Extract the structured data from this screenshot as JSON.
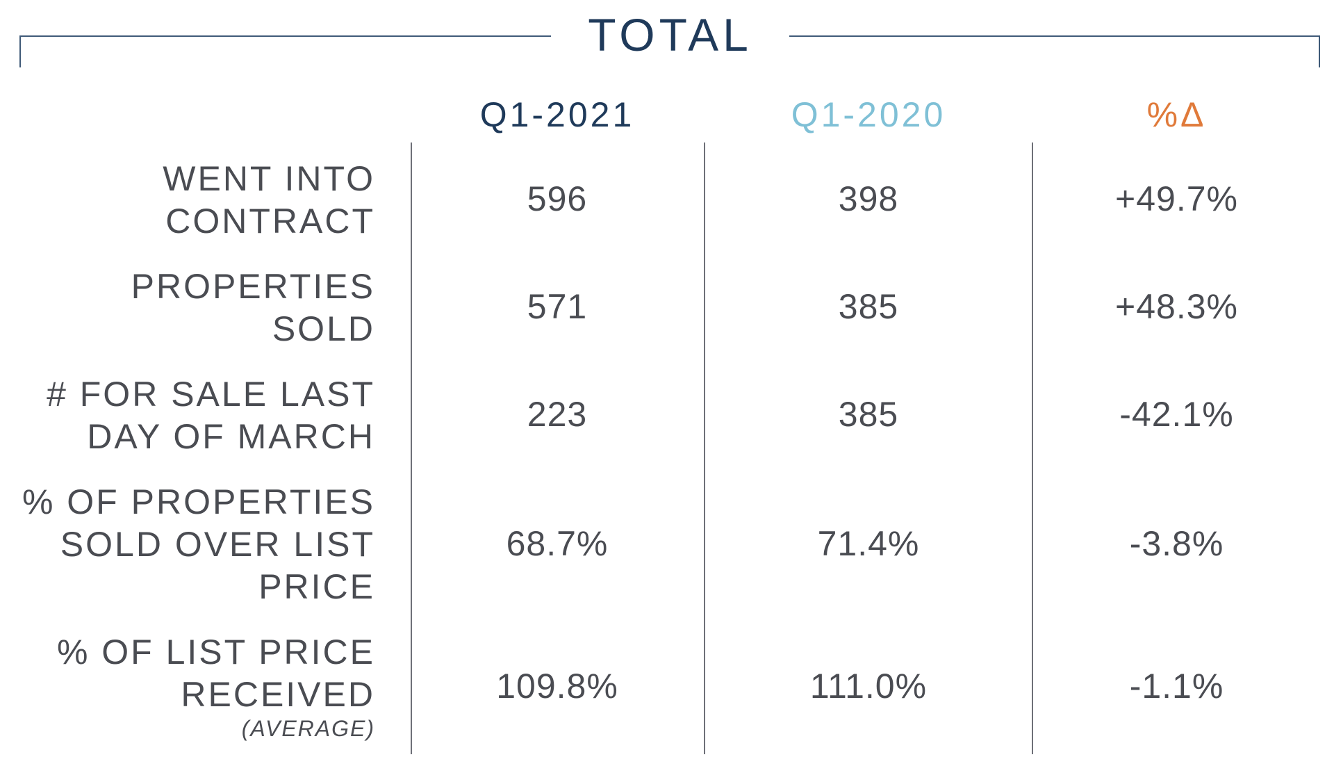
{
  "title": "TOTAL",
  "columns": [
    "Q1-2021",
    "Q1-2020",
    "%Δ"
  ],
  "column_colors": [
    "#1f3a5a",
    "#7fc0d6",
    "#e07a3a"
  ],
  "rows": [
    {
      "label_lines": [
        "WENT INTO",
        "CONTRACT"
      ],
      "sub": "",
      "values": [
        "596",
        "398",
        "+49.7%"
      ]
    },
    {
      "label_lines": [
        "PROPERTIES",
        "SOLD"
      ],
      "sub": "",
      "values": [
        "571",
        "385",
        "+48.3%"
      ]
    },
    {
      "label_lines": [
        "# FOR SALE LAST",
        "DAY OF MARCH"
      ],
      "sub": "",
      "values": [
        "223",
        "385",
        "-42.1%"
      ]
    },
    {
      "label_lines": [
        "% OF PROPERTIES",
        "SOLD OVER LIST",
        "PRICE"
      ],
      "sub": "",
      "values": [
        "68.7%",
        "71.4%",
        "-3.8%"
      ]
    },
    {
      "label_lines": [
        "% OF LIST PRICE",
        "RECEIVED"
      ],
      "sub": "(AVERAGE)",
      "values": [
        "109.8%",
        "111.0%",
        "-1.1%"
      ]
    }
  ]
}
